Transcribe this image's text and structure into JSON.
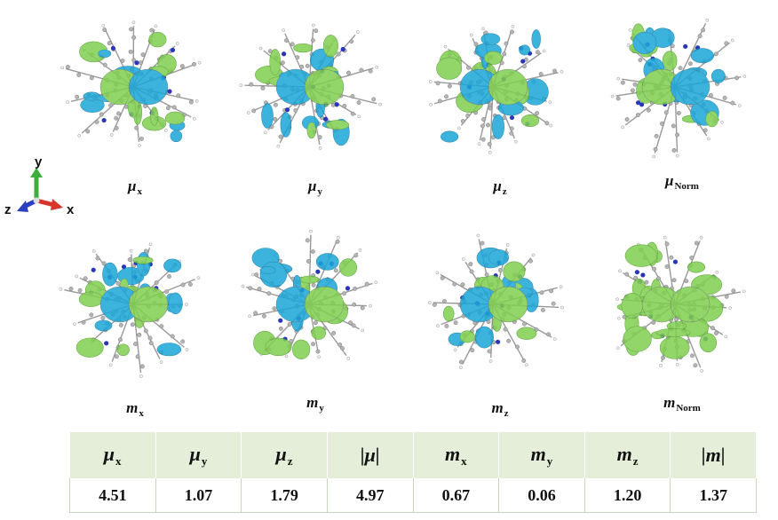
{
  "figure": {
    "panels_top": [
      {
        "label_symbol": "μ",
        "label_sub": "x",
        "colors": [
          "#7fcf4f",
          "#1aa6d8"
        ]
      },
      {
        "label_symbol": "μ",
        "label_sub": "y",
        "colors": [
          "#1aa6d8",
          "#7fcf4f"
        ]
      },
      {
        "label_symbol": "μ",
        "label_sub": "z",
        "colors": [
          "#1aa6d8",
          "#7fcf4f"
        ]
      },
      {
        "label_symbol": "μ",
        "label_sub": "Norm",
        "colors": [
          "#7fcf4f",
          "#1aa6d8"
        ]
      }
    ],
    "panels_bottom": [
      {
        "label_symbol": "m",
        "label_sub": "x",
        "colors": [
          "#1aa6d8",
          "#7fcf4f"
        ]
      },
      {
        "label_symbol": "m",
        "label_sub": "y",
        "colors": [
          "#1aa6d8",
          "#7fcf4f"
        ]
      },
      {
        "label_symbol": "m",
        "label_sub": "z",
        "colors": [
          "#1aa6d8",
          "#7fcf4f"
        ]
      },
      {
        "label_symbol": "m",
        "label_sub": "Norm",
        "colors": [
          "#7fcf4f",
          "#7fcf4f"
        ]
      }
    ],
    "axes": {
      "y": "y",
      "z": "z",
      "x": "x",
      "colors": {
        "y": "#3cae3c",
        "z": "#2b3fbf",
        "x": "#d9342b"
      }
    }
  },
  "table": {
    "headers": [
      {
        "symbol": "μ",
        "sub": "x"
      },
      {
        "symbol": "μ",
        "sub": "y"
      },
      {
        "symbol": "μ",
        "sub": "z"
      },
      {
        "symbol": "|μ|",
        "sub": ""
      },
      {
        "symbol": "m",
        "sub": "x"
      },
      {
        "symbol": "m",
        "sub": "y"
      },
      {
        "symbol": "m",
        "sub": "z"
      },
      {
        "symbol": "|m|",
        "sub": ""
      }
    ],
    "values": [
      "4.51",
      "1.07",
      "1.79",
      "4.97",
      "0.67",
      "0.06",
      "1.20",
      "1.37"
    ]
  }
}
